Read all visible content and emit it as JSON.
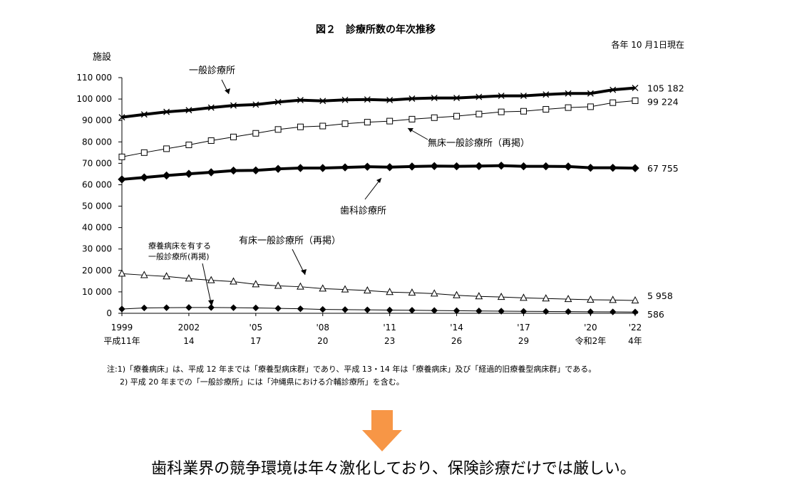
{
  "chart_data": {
    "type": "line",
    "title": "図２　診療所数の年次推移",
    "subtitle": "各年 10 月1日現在",
    "ylabel": "施設",
    "ylim": [
      0,
      110000
    ],
    "yticks": [
      0,
      10000,
      20000,
      30000,
      40000,
      50000,
      60000,
      70000,
      80000,
      90000,
      100000,
      110000
    ],
    "ytick_labels": [
      "0",
      "10 000",
      "20 000",
      "30 000",
      "40 000",
      "50 000",
      "60 000",
      "70 000",
      "80 000",
      "90 000",
      "100 000",
      "110 000"
    ],
    "x": [
      1999,
      2000,
      2001,
      2002,
      2003,
      2004,
      2005,
      2006,
      2007,
      2008,
      2009,
      2010,
      2011,
      2012,
      2013,
      2014,
      2015,
      2016,
      2017,
      2018,
      2019,
      2020,
      2021,
      2022
    ],
    "xticks": [
      {
        "x": 1999,
        "top": "1999",
        "bottom": "平成11年"
      },
      {
        "x": 2002,
        "top": "2002",
        "bottom": "14"
      },
      {
        "x": 2005,
        "top": "'05",
        "bottom": "17"
      },
      {
        "x": 2008,
        "top": "'08",
        "bottom": "20"
      },
      {
        "x": 2011,
        "top": "'11",
        "bottom": "23"
      },
      {
        "x": 2014,
        "top": "'14",
        "bottom": "26"
      },
      {
        "x": 2017,
        "top": "'17",
        "bottom": "29"
      },
      {
        "x": 2020,
        "top": "'20",
        "bottom": "令和2年"
      },
      {
        "x": 2022,
        "top": "'22",
        "bottom": "4年"
      }
    ],
    "series": [
      {
        "name": "一般診療所",
        "marker": "x",
        "weight": "bold",
        "end_label": "105 182",
        "values": [
          91500,
          92800,
          94000,
          94800,
          96000,
          97000,
          97400,
          98600,
          99500,
          99100,
          99600,
          99800,
          99500,
          100200,
          100500,
          100500,
          100995,
          101500,
          101500,
          102100,
          102600,
          102600,
          104300,
          105182
        ]
      },
      {
        "name": "無床一般診療所（再掲）",
        "marker": "square",
        "weight": "thin",
        "end_label": "99 224",
        "values": [
          73000,
          75000,
          76800,
          78600,
          80600,
          82300,
          84000,
          85800,
          87000,
          87400,
          88500,
          89200,
          89700,
          90600,
          91300,
          92000,
          93000,
          94000,
          94300,
          95200,
          96000,
          96400,
          98300,
          99224
        ]
      },
      {
        "name": "歯科診療所",
        "marker": "diamond",
        "weight": "bold",
        "end_label": "67 755",
        "values": [
          62500,
          63400,
          64300,
          65100,
          65800,
          66600,
          66700,
          67400,
          67800,
          67800,
          68100,
          68400,
          68200,
          68500,
          68700,
          68600,
          68700,
          68900,
          68600,
          68600,
          68500,
          67900,
          67900,
          67755
        ]
      },
      {
        "name": "有床一般診療所（再掲）",
        "marker": "triangle",
        "weight": "thin",
        "end_label": "5 958",
        "values": [
          18500,
          17800,
          17200,
          16200,
          15400,
          14800,
          13500,
          12800,
          12400,
          11500,
          11100,
          10600,
          9900,
          9600,
          9200,
          8400,
          7900,
          7600,
          7200,
          6900,
          6600,
          6300,
          6200,
          5958
        ]
      },
      {
        "name": "療養病床を有する一般診療所(再掲)",
        "marker": "diamond",
        "weight": "thin",
        "end_label": "586",
        "values": [
          2000,
          2500,
          2600,
          2700,
          2700,
          2600,
          2500,
          2300,
          2100,
          1800,
          1700,
          1600,
          1500,
          1400,
          1300,
          1200,
          1100,
          1000,
          900,
          850,
          780,
          700,
          650,
          586
        ]
      }
    ],
    "annotations": [
      "一般診療所",
      "無床一般診療所（再掲）",
      "歯科診療所",
      "有床一般診療所（再掲）",
      "療養病床を有する",
      "一般診療所(再掲)"
    ]
  },
  "notes": {
    "note1": "注:1)「療養病床」は、平成 12 年までは「療養型病床群」であり、平成 13・14 年は「療養病床」及び「経過的旧療養型病床群」である。",
    "note2": "2) 平成 20 年までの「一般診療所」には「沖縄県における介輔診療所」を含む。"
  },
  "conclusion": "歯科業界の競争環境は年々激化しており、保険診療だけでは厳しい。",
  "colors": {
    "arrow": "#F79646",
    "line": "#000000",
    "grid": "#000000"
  }
}
